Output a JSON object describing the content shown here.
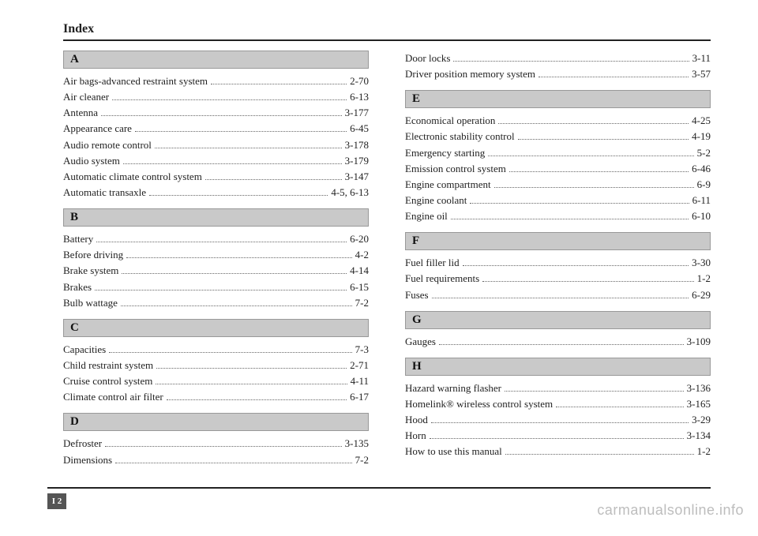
{
  "header": {
    "title": "Index"
  },
  "footer": {
    "page_tab": "I 2"
  },
  "watermark": "carmanualsonline.info",
  "colors": {
    "text": "#222222",
    "rule": "#222222",
    "letter_bg": "#c9c9c9",
    "letter_border": "#999999",
    "watermark": "#bdbdbd",
    "background": "#ffffff"
  },
  "typography": {
    "body_family": "Georgia, Times New Roman, serif",
    "title_fontsize": 16,
    "letter_fontsize": 15,
    "entry_fontsize": 13,
    "watermark_fontsize": 18
  },
  "left": [
    {
      "letter": "A",
      "entries": [
        {
          "label": "Air bags-advanced restraint system",
          "page": "2-70"
        },
        {
          "label": "Air cleaner",
          "page": "6-13"
        },
        {
          "label": "Antenna",
          "page": "3-177"
        },
        {
          "label": "Appearance care",
          "page": "6-45"
        },
        {
          "label": "Audio remote control",
          "page": "3-178"
        },
        {
          "label": "Audio system",
          "page": "3-179"
        },
        {
          "label": "Automatic climate control system",
          "page": "3-147"
        },
        {
          "label": "Automatic transaxle",
          "page": "4-5, 6-13"
        }
      ]
    },
    {
      "letter": "B",
      "entries": [
        {
          "label": "Battery",
          "page": "6-20"
        },
        {
          "label": "Before driving",
          "page": "4-2"
        },
        {
          "label": "Brake system",
          "page": "4-14"
        },
        {
          "label": "Brakes",
          "page": "6-15"
        },
        {
          "label": "Bulb wattage",
          "page": "7-2"
        }
      ]
    },
    {
      "letter": "C",
      "entries": [
        {
          "label": "Capacities",
          "page": "7-3"
        },
        {
          "label": "Child restraint system",
          "page": "2-71"
        },
        {
          "label": "Cruise control system",
          "page": "4-11"
        },
        {
          "label": "Climate control air filter",
          "page": "6-17"
        }
      ]
    },
    {
      "letter": "D",
      "entries": [
        {
          "label": "Defroster",
          "page": "3-135"
        },
        {
          "label": "Dimensions",
          "page": "7-2"
        }
      ]
    }
  ],
  "right": [
    {
      "letter": null,
      "entries": [
        {
          "label": "Door locks",
          "page": "3-11"
        },
        {
          "label": "Driver position memory system",
          "page": "3-57"
        }
      ]
    },
    {
      "letter": "E",
      "entries": [
        {
          "label": "Economical operation",
          "page": "4-25"
        },
        {
          "label": "Electronic stability control",
          "page": "4-19"
        },
        {
          "label": "Emergency starting",
          "page": "5-2"
        },
        {
          "label": "Emission control system",
          "page": "6-46"
        },
        {
          "label": "Engine compartment",
          "page": "6-9"
        },
        {
          "label": "Engine coolant",
          "page": "6-11"
        },
        {
          "label": "Engine oil",
          "page": "6-10"
        }
      ]
    },
    {
      "letter": "F",
      "entries": [
        {
          "label": "Fuel filler lid",
          "page": "3-30"
        },
        {
          "label": "Fuel requirements",
          "page": "1-2"
        },
        {
          "label": "Fuses",
          "page": "6-29"
        }
      ]
    },
    {
      "letter": "G",
      "entries": [
        {
          "label": "Gauges",
          "page": "3-109"
        }
      ]
    },
    {
      "letter": "H",
      "entries": [
        {
          "label": "Hazard warning flasher",
          "page": "3-136"
        },
        {
          "label": "Homelink® wireless control system",
          "page": "3-165"
        },
        {
          "label": "Hood",
          "page": "3-29"
        },
        {
          "label": "Horn",
          "page": "3-134"
        },
        {
          "label": "How to use this manual",
          "page": "1-2"
        }
      ]
    }
  ]
}
